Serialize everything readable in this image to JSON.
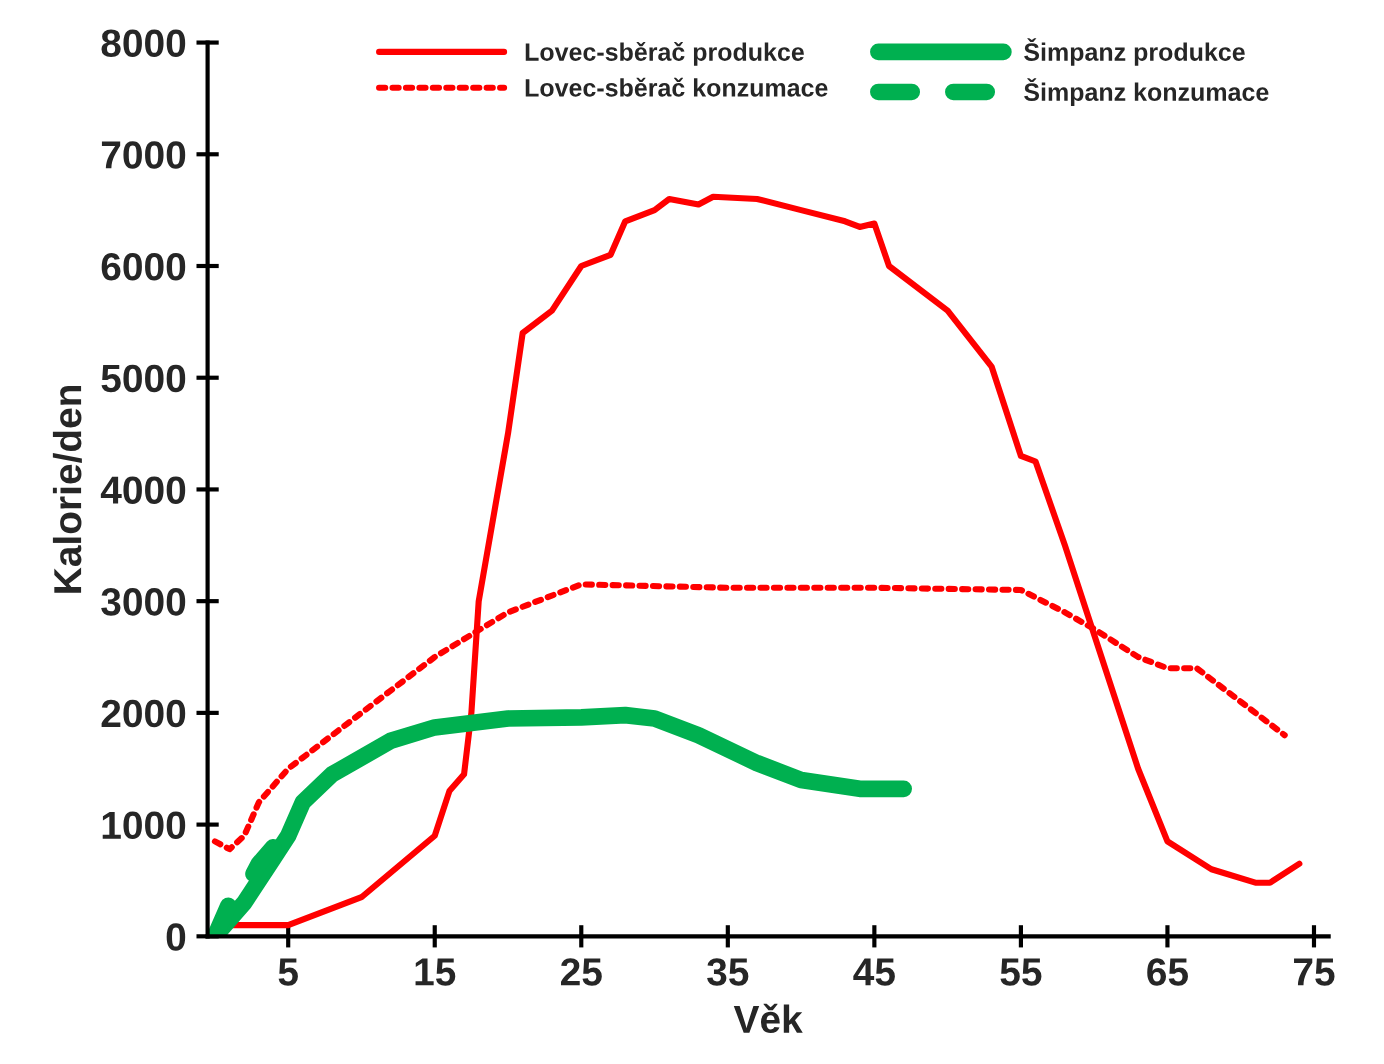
{
  "chart_data": {
    "type": "line",
    "xlabel": "Věk",
    "ylabel": "Kalorie/den",
    "xlim": [
      -0.5,
      76
    ],
    "xticks": [
      5,
      15,
      25,
      35,
      45,
      55,
      65,
      75
    ],
    "ylim": [
      0,
      8000
    ],
    "yticks": [
      0,
      1000,
      2000,
      3000,
      4000,
      5000,
      6000,
      7000,
      8000
    ],
    "grid": false,
    "legend": "top",
    "series": [
      {
        "name": "Lovec-sběrač produkce",
        "color": "#ff0000",
        "line_style": "solid",
        "x": [
          0.5,
          1,
          5,
          10,
          15,
          16,
          17,
          17.5,
          18,
          20,
          21,
          23,
          25,
          27,
          28,
          30,
          31,
          33,
          34,
          37,
          40,
          43,
          44,
          45,
          46,
          50,
          53,
          55,
          56,
          58,
          60,
          63,
          65,
          68,
          71,
          72,
          74
        ],
        "values": [
          0,
          100,
          100,
          350,
          900,
          1300,
          1450,
          2000,
          3000,
          4500,
          5400,
          5600,
          6000,
          6100,
          6400,
          6500,
          6600,
          6550,
          6620,
          6600,
          6500,
          6400,
          6350,
          6380,
          6000,
          5600,
          5100,
          4300,
          4250,
          3500,
          2700,
          1500,
          850,
          600,
          480,
          480,
          650
        ]
      },
      {
        "name": "Lovec-sběrač konzumace",
        "color": "#ff0000",
        "line_style": "dotted",
        "x": [
          0,
          1,
          2,
          3,
          5,
          10,
          15,
          20,
          25,
          35,
          45,
          55,
          58,
          60,
          63,
          65,
          67,
          70,
          73
        ],
        "values": [
          850,
          780,
          900,
          1200,
          1500,
          2000,
          2500,
          2900,
          3150,
          3120,
          3120,
          3100,
          2900,
          2750,
          2500,
          2400,
          2400,
          2100,
          1800
        ]
      },
      {
        "name": "Šimpanz produkce",
        "color": "#00b050",
        "line_style": "solid",
        "x": [
          0,
          2,
          4,
          5,
          6,
          8,
          12,
          15,
          20,
          25,
          28,
          30,
          33,
          37,
          40,
          44,
          47
        ],
        "values": [
          0,
          300,
          700,
          900,
          1200,
          1450,
          1750,
          1870,
          1950,
          1960,
          1980,
          1950,
          1800,
          1550,
          1400,
          1320,
          1320
        ]
      },
      {
        "name": "Šimpanz konzumace",
        "color": "#00b050",
        "line_style": "dashed",
        "x": [
          0,
          1,
          2,
          3,
          4,
          5
        ],
        "values": [
          0,
          300,
          400,
          650,
          800,
          950
        ]
      }
    ]
  }
}
